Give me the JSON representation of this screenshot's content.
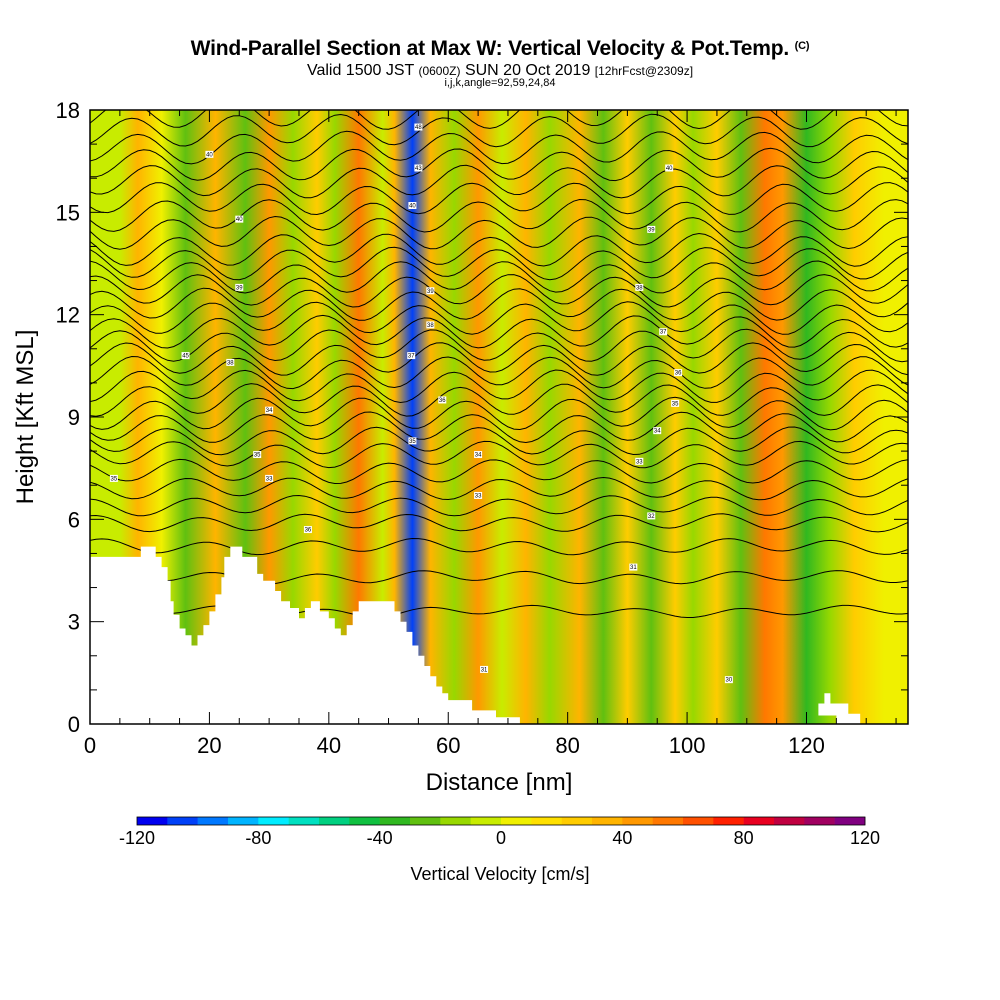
{
  "header": {
    "title": "Wind-Parallel Section at Max W: Vertical Velocity & Pot.Temp.",
    "copyright": "(C)",
    "valid_prefix": "Valid 1500 JST",
    "valid_utc": "(0600Z)",
    "valid_date": "SUN 20 Oct 2019",
    "forecast": "[12hrFcst@2309z]",
    "indices": "i,j,k,angle=92,59,24,84"
  },
  "chart_data": {
    "type": "heatmap",
    "xlabel": "Distance [nm]",
    "ylabel": "Height [Kft MSL]",
    "xlim": [
      0,
      137
    ],
    "ylim": [
      0,
      18
    ],
    "x_ticks": [
      0,
      20,
      40,
      60,
      80,
      100,
      120
    ],
    "y_ticks": [
      0,
      3,
      6,
      9,
      12,
      15,
      18
    ],
    "grid": false,
    "colorbar": {
      "label": "Vertical Velocity [cm/s]",
      "range": [
        -120,
        120
      ],
      "step": 10,
      "ticks": [
        -120,
        -80,
        -40,
        0,
        40,
        80,
        120
      ],
      "colors": [
        "#0000f0",
        "#0040f8",
        "#0078ff",
        "#00b4ff",
        "#00ecff",
        "#00e0c0",
        "#00d080",
        "#10c040",
        "#30b820",
        "#60c010",
        "#98d800",
        "#c8ec00",
        "#f0f000",
        "#ffe000",
        "#ffcc00",
        "#ffb400",
        "#ff9800",
        "#ff7800",
        "#ff5000",
        "#ff2000",
        "#e80020",
        "#c00040",
        "#a00060",
        "#800080"
      ]
    },
    "velocity_columns": [
      {
        "x": 5,
        "w": -10
      },
      {
        "x": 8,
        "w": 30
      },
      {
        "x": 12,
        "w": 5
      },
      {
        "x": 16,
        "w": -30
      },
      {
        "x": 21,
        "w": 35
      },
      {
        "x": 26,
        "w": -25
      },
      {
        "x": 30,
        "w": 45
      },
      {
        "x": 34,
        "w": -20
      },
      {
        "x": 38,
        "w": 25
      },
      {
        "x": 41,
        "w": -15
      },
      {
        "x": 45,
        "w": 55
      },
      {
        "x": 49,
        "w": -10
      },
      {
        "x": 51,
        "w": 30
      },
      {
        "x": 54,
        "w": -110
      },
      {
        "x": 57,
        "w": 35
      },
      {
        "x": 61,
        "w": -15
      },
      {
        "x": 65,
        "w": 40
      },
      {
        "x": 69,
        "w": -10
      },
      {
        "x": 73,
        "w": 30
      },
      {
        "x": 77,
        "w": -20
      },
      {
        "x": 82,
        "w": 35
      },
      {
        "x": 86,
        "w": -25
      },
      {
        "x": 90,
        "w": 25
      },
      {
        "x": 94,
        "w": -30
      },
      {
        "x": 98,
        "w": 25
      },
      {
        "x": 101,
        "w": -20
      },
      {
        "x": 105,
        "w": 20
      },
      {
        "x": 109,
        "w": -25
      },
      {
        "x": 113,
        "w": 50
      },
      {
        "x": 116,
        "w": 45
      },
      {
        "x": 120,
        "w": -35
      },
      {
        "x": 124,
        "w": -15
      },
      {
        "x": 128,
        "w": 25
      },
      {
        "x": 133,
        "w": 5
      }
    ],
    "terrain": [
      [
        0,
        4.9
      ],
      [
        8.5,
        4.9
      ],
      [
        8.5,
        5.2
      ],
      [
        11,
        5.2
      ],
      [
        11,
        4.9
      ],
      [
        12,
        4.9
      ],
      [
        12,
        4.6
      ],
      [
        13,
        4.6
      ],
      [
        13,
        4.2
      ],
      [
        13.5,
        4.2
      ],
      [
        13.5,
        3.6
      ],
      [
        14,
        3.6
      ],
      [
        14,
        3.2
      ],
      [
        15,
        3.2
      ],
      [
        15,
        2.8
      ],
      [
        16,
        2.8
      ],
      [
        16,
        2.6
      ],
      [
        17,
        2.6
      ],
      [
        17,
        2.3
      ],
      [
        18,
        2.3
      ],
      [
        18,
        2.6
      ],
      [
        19,
        2.6
      ],
      [
        19,
        2.9
      ],
      [
        20,
        2.9
      ],
      [
        20,
        3.3
      ],
      [
        21,
        3.3
      ],
      [
        21,
        3.8
      ],
      [
        22,
        3.8
      ],
      [
        22,
        4.3
      ],
      [
        22.5,
        4.3
      ],
      [
        22.5,
        4.9
      ],
      [
        23.5,
        4.9
      ],
      [
        23.5,
        5.2
      ],
      [
        25.5,
        5.2
      ],
      [
        25.5,
        4.9
      ],
      [
        28,
        4.9
      ],
      [
        28,
        4.4
      ],
      [
        29,
        4.4
      ],
      [
        29,
        4.2
      ],
      [
        31,
        4.2
      ],
      [
        31,
        3.9
      ],
      [
        32,
        3.9
      ],
      [
        32,
        3.6
      ],
      [
        33.5,
        3.6
      ],
      [
        33.5,
        3.4
      ],
      [
        35,
        3.4
      ],
      [
        35,
        3.1
      ],
      [
        36,
        3.1
      ],
      [
        36,
        3.4
      ],
      [
        37,
        3.4
      ],
      [
        37,
        3.6
      ],
      [
        38.5,
        3.6
      ],
      [
        38.5,
        3.3
      ],
      [
        40,
        3.3
      ],
      [
        40,
        3.1
      ],
      [
        41,
        3.1
      ],
      [
        41,
        2.8
      ],
      [
        42,
        2.8
      ],
      [
        42,
        2.6
      ],
      [
        43,
        2.6
      ],
      [
        43,
        2.9
      ],
      [
        44,
        2.9
      ],
      [
        44,
        3.3
      ],
      [
        45,
        3.3
      ],
      [
        45,
        3.6
      ],
      [
        51,
        3.6
      ],
      [
        51,
        3.3
      ],
      [
        52,
        3.3
      ],
      [
        52,
        3.0
      ],
      [
        53,
        3.0
      ],
      [
        53,
        2.7
      ],
      [
        54,
        2.7
      ],
      [
        54,
        2.3
      ],
      [
        55,
        2.3
      ],
      [
        55,
        2.0
      ],
      [
        56,
        2.0
      ],
      [
        56,
        1.7
      ],
      [
        57,
        1.7
      ],
      [
        57,
        1.4
      ],
      [
        58,
        1.4
      ],
      [
        58,
        1.1
      ],
      [
        59,
        1.1
      ],
      [
        59,
        0.9
      ],
      [
        60,
        0.9
      ],
      [
        60,
        0.7
      ],
      [
        64,
        0.7
      ],
      [
        64,
        0.4
      ],
      [
        68,
        0.4
      ],
      [
        68,
        0.2
      ],
      [
        72,
        0.2
      ],
      [
        72,
        0
      ],
      [
        125,
        0
      ],
      [
        125,
        0.25
      ],
      [
        122,
        0.25
      ],
      [
        122,
        0.6
      ],
      [
        123,
        0.6
      ],
      [
        123,
        0.9
      ],
      [
        124,
        0.9
      ],
      [
        124,
        0.6
      ],
      [
        127,
        0.6
      ],
      [
        127,
        0.3
      ],
      [
        129,
        0.3
      ],
      [
        129,
        0
      ],
      [
        137,
        0
      ]
    ],
    "isentrope_heights": [
      3.3,
      4.3,
      5.2,
      5.9,
      6.4,
      6.9,
      7.4,
      7.9,
      8.3,
      8.7,
      9.1,
      9.5,
      9.9,
      10.3,
      10.7,
      11.1,
      11.5,
      11.9,
      12.3,
      12.7,
      13.1,
      13.5,
      13.9,
      14.4,
      14.9,
      15.4,
      15.9,
      16.4,
      16.9,
      17.4,
      17.9
    ],
    "contour_labels": [
      {
        "x": 4,
        "y": 7.2,
        "text": "35"
      },
      {
        "x": 16,
        "y": 10.8,
        "text": "45"
      },
      {
        "x": 20,
        "y": 16.7,
        "text": "40"
      },
      {
        "x": 23.5,
        "y": 10.6,
        "text": "38"
      },
      {
        "x": 25,
        "y": 14.8,
        "text": "40"
      },
      {
        "x": 25,
        "y": 12.8,
        "text": "39"
      },
      {
        "x": 28,
        "y": 7.9,
        "text": "35"
      },
      {
        "x": 30,
        "y": 9.2,
        "text": "34"
      },
      {
        "x": 30,
        "y": 7.2,
        "text": "33"
      },
      {
        "x": 36.5,
        "y": 5.7,
        "text": "36"
      },
      {
        "x": 55,
        "y": 17.5,
        "text": "48"
      },
      {
        "x": 55,
        "y": 16.3,
        "text": "43"
      },
      {
        "x": 54,
        "y": 15.2,
        "text": "40"
      },
      {
        "x": 57,
        "y": 12.7,
        "text": "39"
      },
      {
        "x": 57,
        "y": 11.7,
        "text": "38"
      },
      {
        "x": 53.8,
        "y": 10.8,
        "text": "37"
      },
      {
        "x": 59,
        "y": 9.5,
        "text": "36"
      },
      {
        "x": 54,
        "y": 8.3,
        "text": "35"
      },
      {
        "x": 65,
        "y": 7.9,
        "text": "34"
      },
      {
        "x": 65,
        "y": 6.7,
        "text": "33"
      },
      {
        "x": 66,
        "y": 1.6,
        "text": "31"
      },
      {
        "x": 97,
        "y": 16.3,
        "text": "40"
      },
      {
        "x": 94,
        "y": 14.5,
        "text": "39"
      },
      {
        "x": 92,
        "y": 12.8,
        "text": "38"
      },
      {
        "x": 96,
        "y": 11.5,
        "text": "37"
      },
      {
        "x": 98.5,
        "y": 10.3,
        "text": "36"
      },
      {
        "x": 98,
        "y": 9.4,
        "text": "35"
      },
      {
        "x": 95,
        "y": 8.6,
        "text": "34"
      },
      {
        "x": 92,
        "y": 7.7,
        "text": "33"
      },
      {
        "x": 94,
        "y": 6.1,
        "text": "32"
      },
      {
        "x": 91,
        "y": 4.6,
        "text": "31"
      },
      {
        "x": 107,
        "y": 1.3,
        "text": "30"
      }
    ]
  }
}
